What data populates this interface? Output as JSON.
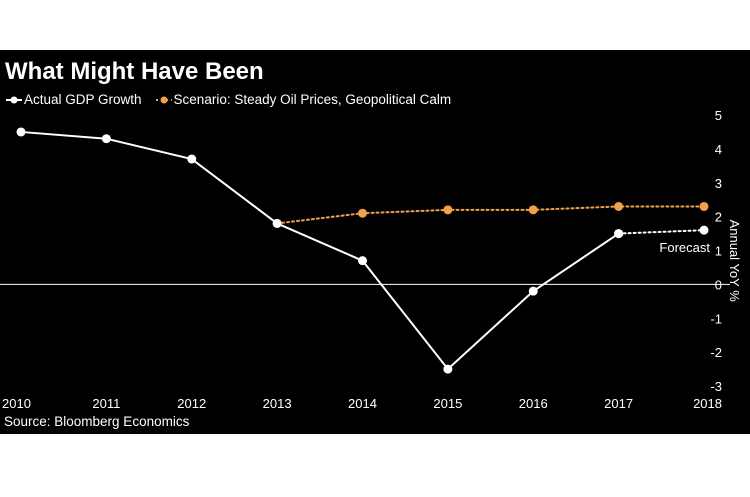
{
  "chart_data": {
    "type": "line",
    "title": "What Might Have Been",
    "ylabel": "Annual YoY %",
    "xlabel": "",
    "x": [
      "2010",
      "2011",
      "2012",
      "2013",
      "2014",
      "2015",
      "2016",
      "2017",
      "2018"
    ],
    "ylim": [
      -3,
      5
    ],
    "yticks": [
      5,
      4,
      3,
      2,
      1,
      0,
      -1,
      -2,
      -3
    ],
    "grid": false,
    "legend_position": "top-left",
    "series": [
      {
        "name": "Actual GDP Growth",
        "color": "#ffffff",
        "style": "solid",
        "x": [
          "2010",
          "2011",
          "2012",
          "2013",
          "2014",
          "2015",
          "2016",
          "2017"
        ],
        "values": [
          4.5,
          4.3,
          3.7,
          1.8,
          0.7,
          -2.5,
          -0.2,
          1.5
        ]
      },
      {
        "name": "Actual GDP Growth (forecast segment)",
        "color": "#ffffff",
        "style": "dotted",
        "x": [
          "2017",
          "2018"
        ],
        "values": [
          1.5,
          1.6
        ]
      },
      {
        "name": "Scenario: Steady Oil Prices, Geopolitical Calm",
        "color": "#f0a24a",
        "style": "dotted",
        "x": [
          "2013",
          "2014",
          "2015",
          "2016",
          "2017",
          "2018"
        ],
        "values": [
          1.8,
          2.1,
          2.2,
          2.2,
          2.3,
          2.3
        ]
      }
    ],
    "annotations": [
      {
        "text": "Forecast",
        "x": "2018",
        "y": 1.1
      }
    ],
    "legend": [
      {
        "label": "Actual GDP Growth",
        "color": "#ffffff"
      },
      {
        "label": "Scenario: Steady Oil Prices, Geopolitical Calm",
        "color": "#f0a24a"
      }
    ],
    "source": "Source: Bloomberg Economics"
  }
}
